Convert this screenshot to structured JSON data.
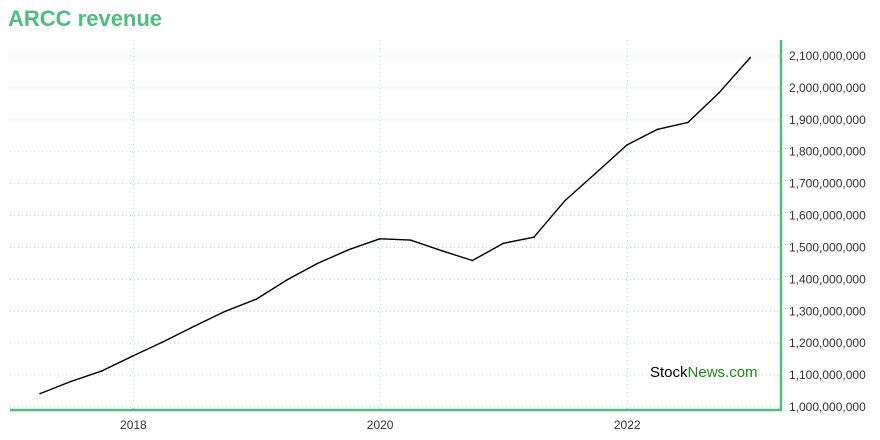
{
  "chart_data": {
    "type": "line",
    "title": "ARCC revenue",
    "xlabel": "",
    "ylabel": "",
    "x_ticks": [
      "2018",
      "2020",
      "2022"
    ],
    "y_ticks": [
      "1,000,000,000",
      "1,100,000,000",
      "1,200,000,000",
      "1,300,000,000",
      "1,400,000,000",
      "1,500,000,000",
      "1,600,000,000",
      "1,700,000,000",
      "1,800,000,000",
      "1,900,000,000",
      "2,000,000,000",
      "2,100,000,000"
    ],
    "ylim": [
      1000000000,
      2100000000
    ],
    "xlim": [
      "2017-01-01",
      "2023-04-01"
    ],
    "grid": true,
    "y_axis_side": "right",
    "series": [
      {
        "x": [
          "2017-03-31",
          "2017-06-30",
          "2017-09-30",
          "2017-12-31",
          "2018-03-31",
          "2018-06-30",
          "2018-09-30",
          "2018-12-31",
          "2019-03-31",
          "2019-06-30",
          "2019-09-30",
          "2019-12-31",
          "2020-03-31",
          "2020-06-30",
          "2020-09-30",
          "2020-12-31",
          "2021-03-31",
          "2021-06-30",
          "2021-09-30",
          "2021-12-31",
          "2022-03-31",
          "2022-06-30",
          "2022-09-30",
          "2022-12-31"
        ],
        "values": [
          1042000000,
          1080000000,
          1113000000,
          1160000000,
          1205000000,
          1253000000,
          1300000000,
          1338000000,
          1398000000,
          1450000000,
          1493000000,
          1527000000,
          1523000000,
          1490000000,
          1459000000,
          1513000000,
          1532000000,
          1646000000,
          1733000000,
          1821000000,
          1870000000,
          1892000000,
          1985000000,
          2095000000
        ]
      }
    ],
    "colors": {
      "title": "#4dbe7e",
      "axis": "#4dbe7e",
      "grid": "#a9dfc4",
      "line": "#000000"
    }
  },
  "watermark": {
    "part1": "Stock",
    "part2": "News.com"
  }
}
